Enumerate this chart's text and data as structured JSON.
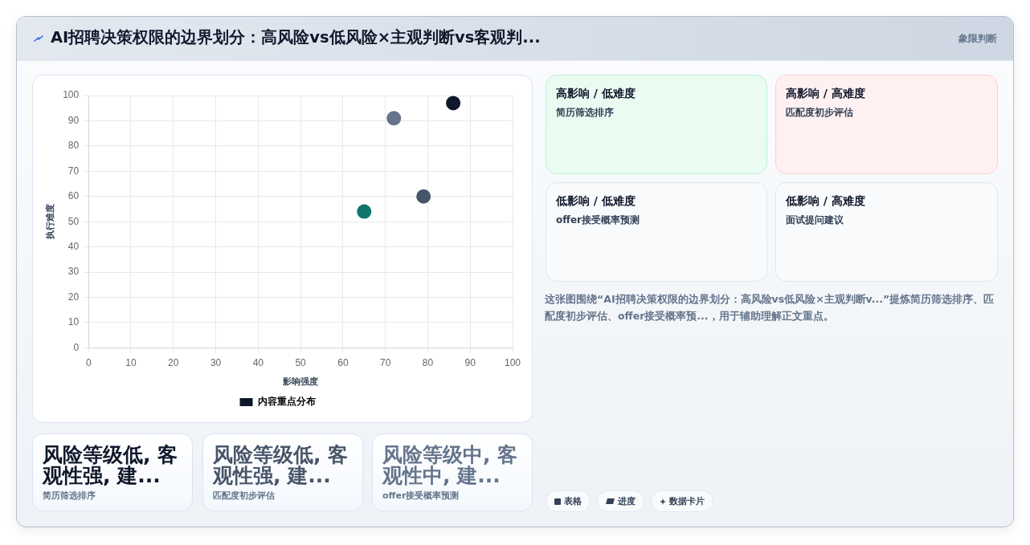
{
  "chart_data": [
    {
      "type": "other",
      "title": "AI招聘决策权限的边界划分：高风险vs低风险×主观判断vs客观判...",
      "subtitle": "象限判断"
    },
    {
      "type": "scatter",
      "xlabel": "影响强度",
      "ylabel": "执行难度",
      "series": [
        {
          "name": "内容重点分布",
          "color": "#0f172a",
          "colors": [
            "#0f172a",
            "#475569",
            "#64748b",
            "#0f766e"
          ],
          "x": [
            86,
            79,
            72,
            65
          ],
          "values": [
            97,
            60,
            91,
            54
          ]
        }
      ],
      "xlim": [
        0,
        100
      ],
      "ylim": [
        0,
        100
      ],
      "xticks": [
        0,
        10,
        20,
        30,
        40,
        50,
        60,
        70,
        80,
        90,
        100
      ],
      "yticks": [
        0,
        10,
        20,
        30,
        40,
        50,
        60,
        70,
        80,
        90,
        100
      ],
      "grid": true,
      "legend": "bottom",
      "marker": "circle"
    },
    {
      "type": "other",
      "title": "高影响 / 低难度",
      "annotations": [
        "简历筛选排序"
      ]
    },
    {
      "type": "other",
      "title": "高影响 / 高难度",
      "annotations": [
        "匹配度初步评估"
      ]
    },
    {
      "type": "other",
      "title": "低影响 / 低难度",
      "annotations": [
        "offer接受概率预测"
      ]
    },
    {
      "type": "other",
      "title": "低影响 / 高难度",
      "annotations": [
        "面试提问建议"
      ]
    },
    {
      "type": "other",
      "annotations": [
        "这张图围绕“AI招聘决策权限的边界划分：高风险vs低风险×主观判断v...”提炼简历筛选排序、匹配度初步评估、offer接受概率预...，用于辅助理解正文重点。"
      ]
    },
    {
      "type": "other",
      "title": "风险等级低, 客观性强, 建...",
      "annotations": [
        "简历筛选排序"
      ]
    },
    {
      "type": "other",
      "title": "风险等级低, 客观性强, 建...",
      "annotations": [
        "匹配度初步评估"
      ]
    },
    {
      "type": "other",
      "title": "风险等级中, 客观性中, 建...",
      "annotations": [
        "offer接受概率预测"
      ]
    },
    {
      "type": "other",
      "annotations": [
        "表格",
        "进度",
        "数据卡片"
      ]
    }
  ]
}
